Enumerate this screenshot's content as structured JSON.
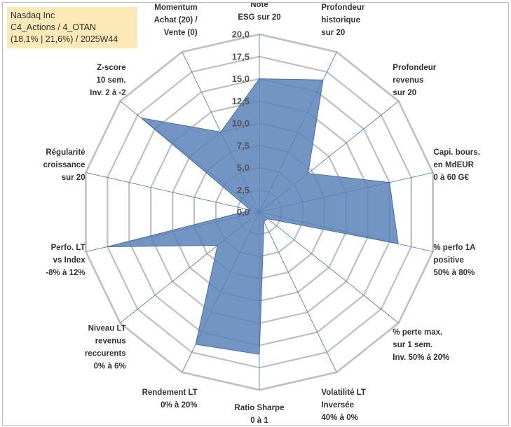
{
  "info": {
    "line1": "Nasdaq Inc",
    "line2": "C4_Actions / 4_OTAN",
    "line3": "(18,1% | 21,6%) / 2025W44"
  },
  "colors": {
    "fill": "#5b82b8",
    "stroke": "#4a6fa0",
    "grid": "#bfbfbf",
    "spoke": "#4472c4",
    "infobox": "#fde9b8"
  },
  "chart_data": {
    "type": "radar",
    "range": [
      0,
      20
    ],
    "ticks": [
      0,
      2.5,
      5,
      7.5,
      10,
      12.5,
      15,
      17.5,
      20
    ],
    "tick_labels": [
      "0,0",
      "2,5",
      "5,0",
      "7,5",
      "10,0",
      "12,5",
      "15,0",
      "17,5",
      "20,0"
    ],
    "axes": [
      {
        "label": [
          "Note",
          "ESG sur 20"
        ],
        "value": 15
      },
      {
        "label": [
          "Profondeur",
          "historique",
          "sur 20"
        ],
        "value": 16.5
      },
      {
        "label": [
          "Profondeur",
          "revenus",
          "sur 20"
        ],
        "value": 7
      },
      {
        "label": [
          "Capi. bours.",
          "en MdEUR",
          "0 à 60 G€"
        ],
        "value": 15
      },
      {
        "label": [
          "% perfo 1A",
          "positive",
          "50% à 80%"
        ],
        "value": 16
      },
      {
        "label": [
          "% perte max.",
          "sur 1 sem.",
          "Inv. 50% à 20%"
        ],
        "value": 1.2
      },
      {
        "label": [
          "Volatilité LT",
          "Inversée",
          "40% à 0%"
        ],
        "value": 1.2
      },
      {
        "label": [
          "Ratio Sharpe",
          "0 à 1"
        ],
        "value": 16
      },
      {
        "label": [
          "Rendement LT",
          "0% à 20%"
        ],
        "value": 16.5
      },
      {
        "label": [
          "Niveau LT",
          "revenus",
          "reccurents",
          "0% à 6%"
        ],
        "value": 6
      },
      {
        "label": [
          "Perfo. LT",
          "vs Index",
          "-8% à 12%"
        ],
        "value": 17.5
      },
      {
        "label": [
          "Régularité",
          "croissance",
          "sur 20"
        ],
        "value": 1
      },
      {
        "label": [
          "Z-score",
          "10 sem.",
          "Inv. 2 à -2"
        ],
        "value": 17
      },
      {
        "label": [
          "Momentum",
          "Achat (20) /",
          "Vente (0)"
        ],
        "value": 10
      }
    ]
  }
}
